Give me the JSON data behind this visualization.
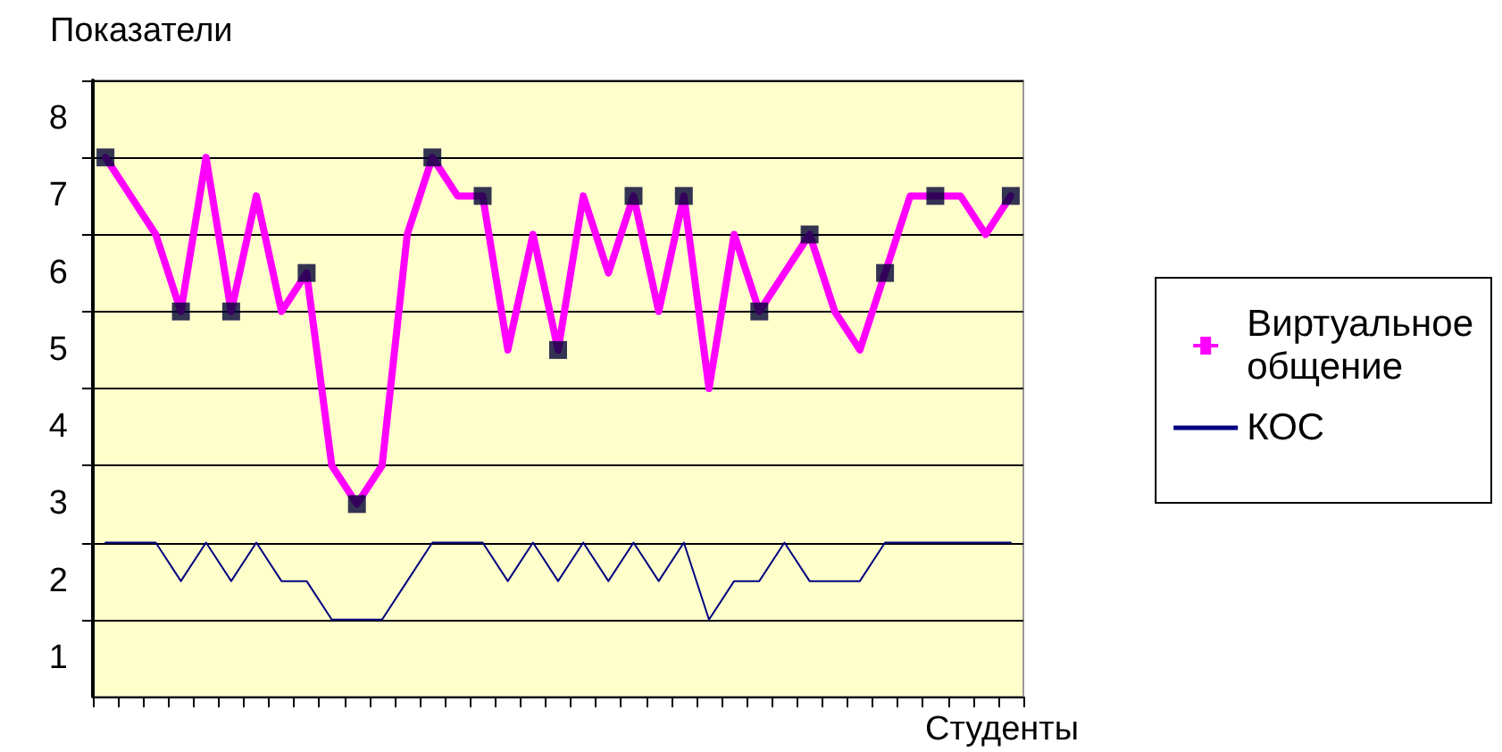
{
  "chart_data": {
    "type": "line",
    "xlabel": "Студенты",
    "ylabel": "Показатели",
    "categories": [
      null,
      null,
      null,
      null,
      null,
      null,
      null,
      null,
      null,
      null,
      null,
      null,
      null,
      null,
      null,
      null,
      null,
      null,
      null,
      null,
      null,
      null,
      null,
      null,
      null,
      null,
      null,
      null,
      null,
      null,
      null,
      null,
      null,
      null,
      null,
      null,
      null
    ],
    "series": [
      {
        "name": "Виртуальное общение",
        "color": "#ff00ff",
        "marker": "none",
        "values": [
          7,
          6.5,
          6,
          5,
          7,
          5,
          6.5,
          5,
          5.5,
          3,
          2.5,
          3,
          6,
          7,
          6.5,
          6.5,
          4.5,
          6,
          4.5,
          6.5,
          5.5,
          6.5,
          5,
          6.5,
          4,
          6,
          5,
          5.5,
          6,
          5,
          4.5,
          5.5,
          6.5,
          6.5,
          6.5,
          6,
          6.5
        ]
      },
      {
        "type": "scatter",
        "color": "#000033",
        "marker": "square",
        "values": [
          7,
          null,
          null,
          5,
          null,
          5,
          null,
          null,
          5.5,
          null,
          2.5,
          null,
          null,
          7,
          null,
          6.5,
          null,
          null,
          4.5,
          null,
          null,
          6.5,
          null,
          6.5,
          null,
          null,
          5,
          null,
          6,
          null,
          null,
          5.5,
          null,
          6.5,
          null,
          null,
          6.5
        ]
      },
      {
        "name": "КОС",
        "color": "#000080",
        "marker": "none",
        "values": [
          2,
          2,
          2,
          1.5,
          2,
          1.5,
          2,
          1.5,
          1.5,
          1,
          1,
          1,
          1.5,
          2,
          2,
          2,
          1.5,
          2,
          1.5,
          2,
          1.5,
          2,
          1.5,
          2,
          1,
          1.5,
          1.5,
          2,
          1.5,
          1.5,
          1.5,
          2,
          2,
          2,
          2,
          2,
          2
        ]
      }
    ],
    "ylim": [
      0,
      8
    ],
    "yticks": [
      1,
      2,
      3,
      4,
      5,
      6,
      7,
      8
    ],
    "grid": "y",
    "legend": "right"
  }
}
